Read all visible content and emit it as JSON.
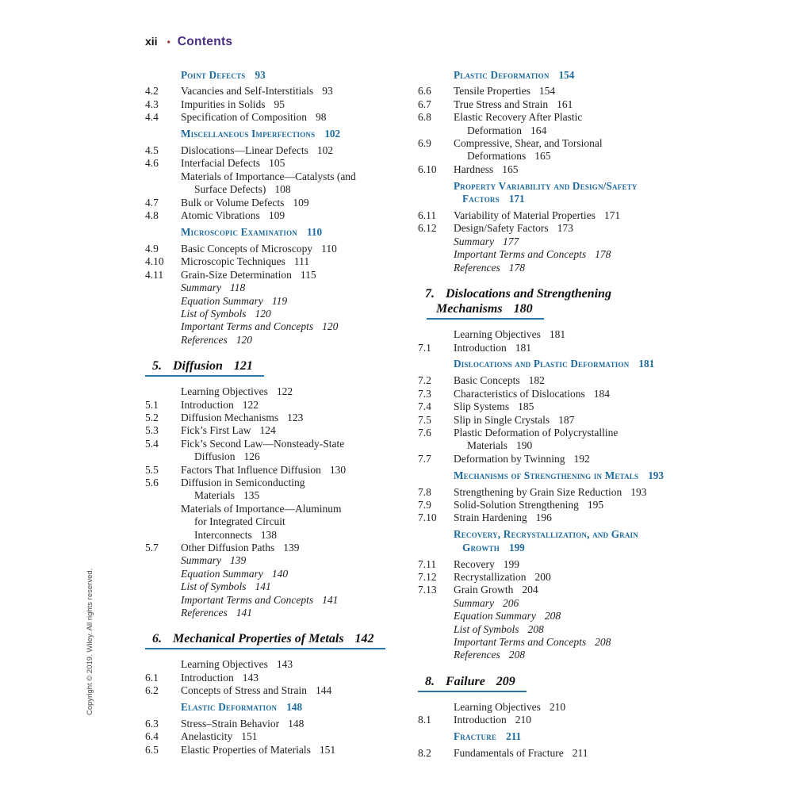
{
  "header": {
    "page_label": "xii",
    "separator": "•",
    "title": "Contents"
  },
  "copyright_sidebar": "Copyright © 2019. Wiley. All rights reserved.",
  "colors": {
    "section_heading_blue": "#1d6a9e",
    "chapter_underline_blue": "#2a76ae",
    "contents_purple": "#4b2d84",
    "bullet_red": "#9e2b25",
    "body_text": "#1f1f1f",
    "background": "#ffffff"
  },
  "columns": {
    "left": [
      {
        "type": "section",
        "lines": [
          [
            "Point Defects",
            "93"
          ]
        ]
      },
      {
        "type": "entry",
        "num": "4.2",
        "lines": [
          [
            "Vacancies and Self-Interstitials",
            "93"
          ]
        ]
      },
      {
        "type": "entry",
        "num": "4.3",
        "lines": [
          [
            "Impurities in Solids",
            "95"
          ]
        ]
      },
      {
        "type": "entry",
        "num": "4.4",
        "lines": [
          [
            "Specification of Composition",
            "98"
          ]
        ]
      },
      {
        "type": "section",
        "lines": [
          [
            "Miscellaneous Imperfections",
            "102"
          ]
        ]
      },
      {
        "type": "entry",
        "num": "4.5",
        "lines": [
          [
            "Dislocations—Linear Defects",
            "102"
          ]
        ]
      },
      {
        "type": "entry",
        "num": "4.6",
        "lines": [
          [
            "Interfacial Defects",
            "105"
          ]
        ]
      },
      {
        "type": "plain",
        "num": "",
        "lines": [
          [
            "Materials of Importance—Catalysts (and",
            ""
          ],
          [
            "Surface Defects)",
            "108"
          ]
        ]
      },
      {
        "type": "entry",
        "num": "4.7",
        "lines": [
          [
            "Bulk or Volume Defects",
            "109"
          ]
        ]
      },
      {
        "type": "entry",
        "num": "4.8",
        "lines": [
          [
            "Atomic Vibrations",
            "109"
          ]
        ]
      },
      {
        "type": "section",
        "lines": [
          [
            "Microscopic Examination",
            "110"
          ]
        ]
      },
      {
        "type": "entry",
        "num": "4.9",
        "lines": [
          [
            "Basic Concepts of Microscopy",
            "110"
          ]
        ]
      },
      {
        "type": "entry",
        "num": "4.10",
        "lines": [
          [
            "Microscopic Techniques",
            "111"
          ]
        ]
      },
      {
        "type": "entry",
        "num": "4.11",
        "lines": [
          [
            "Grain-Size Determination",
            "115"
          ]
        ]
      },
      {
        "type": "italic",
        "num": "",
        "lines": [
          [
            "Summary",
            "118"
          ]
        ]
      },
      {
        "type": "italic",
        "num": "",
        "lines": [
          [
            "Equation Summary",
            "119"
          ]
        ]
      },
      {
        "type": "italic",
        "num": "",
        "lines": [
          [
            "List of Symbols",
            "120"
          ]
        ]
      },
      {
        "type": "italic",
        "num": "",
        "lines": [
          [
            "Important Terms and Concepts",
            "120"
          ]
        ]
      },
      {
        "type": "italic",
        "num": "",
        "lines": [
          [
            "References",
            "120"
          ]
        ]
      },
      {
        "type": "chapter",
        "num": "5.",
        "lines": [
          [
            "Diffusion",
            "121"
          ]
        ]
      },
      {
        "type": "plain",
        "num": "",
        "lines": [
          [
            "Learning Objectives",
            "122"
          ]
        ]
      },
      {
        "type": "entry",
        "num": "5.1",
        "lines": [
          [
            "Introduction",
            "122"
          ]
        ]
      },
      {
        "type": "entry",
        "num": "5.2",
        "lines": [
          [
            "Diffusion Mechanisms",
            "123"
          ]
        ]
      },
      {
        "type": "entry",
        "num": "5.3",
        "lines": [
          [
            "Fick’s First Law",
            "124"
          ]
        ]
      },
      {
        "type": "entry",
        "num": "5.4",
        "lines": [
          [
            "Fick’s Second Law—Nonsteady-State",
            ""
          ],
          [
            "Diffusion",
            "126"
          ]
        ]
      },
      {
        "type": "entry",
        "num": "5.5",
        "lines": [
          [
            "Factors That Influence Diffusion",
            "130"
          ]
        ]
      },
      {
        "type": "entry",
        "num": "5.6",
        "lines": [
          [
            "Diffusion in Semiconducting",
            ""
          ],
          [
            "Materials",
            "135"
          ]
        ]
      },
      {
        "type": "plain",
        "num": "",
        "lines": [
          [
            "Materials of Importance—Aluminum",
            ""
          ],
          [
            "for Integrated Circuit",
            ""
          ],
          [
            "Interconnects",
            "138"
          ]
        ]
      },
      {
        "type": "entry",
        "num": "5.7",
        "lines": [
          [
            "Other Diffusion Paths",
            "139"
          ]
        ]
      },
      {
        "type": "italic",
        "num": "",
        "lines": [
          [
            "Summary",
            "139"
          ]
        ]
      },
      {
        "type": "italic",
        "num": "",
        "lines": [
          [
            "Equation Summary",
            "140"
          ]
        ]
      },
      {
        "type": "italic",
        "num": "",
        "lines": [
          [
            "List of Symbols",
            "141"
          ]
        ]
      },
      {
        "type": "italic",
        "num": "",
        "lines": [
          [
            "Important Terms and Concepts",
            "141"
          ]
        ]
      },
      {
        "type": "italic",
        "num": "",
        "lines": [
          [
            "References",
            "141"
          ]
        ]
      },
      {
        "type": "chapter",
        "num": "6.",
        "lines": [
          [
            "Mechanical Properties of Metals",
            "142"
          ]
        ]
      },
      {
        "type": "plain",
        "num": "",
        "lines": [
          [
            "Learning Objectives",
            "143"
          ]
        ]
      },
      {
        "type": "entry",
        "num": "6.1",
        "lines": [
          [
            "Introduction",
            "143"
          ]
        ]
      },
      {
        "type": "entry",
        "num": "6.2",
        "lines": [
          [
            "Concepts of Stress and Strain",
            "144"
          ]
        ]
      },
      {
        "type": "section",
        "lines": [
          [
            "Elastic Deformation",
            "148"
          ]
        ]
      },
      {
        "type": "entry",
        "num": "6.3",
        "lines": [
          [
            "Stress–Strain Behavior",
            "148"
          ]
        ]
      },
      {
        "type": "entry",
        "num": "6.4",
        "lines": [
          [
            "Anelasticity",
            "151"
          ]
        ]
      },
      {
        "type": "entry",
        "num": "6.5",
        "lines": [
          [
            "Elastic Properties of Materials",
            "151"
          ]
        ]
      }
    ],
    "right": [
      {
        "type": "section",
        "lines": [
          [
            "Plastic Deformation",
            "154"
          ]
        ]
      },
      {
        "type": "entry",
        "num": "6.6",
        "lines": [
          [
            "Tensile Properties",
            "154"
          ]
        ]
      },
      {
        "type": "entry",
        "num": "6.7",
        "lines": [
          [
            "True Stress and Strain",
            "161"
          ]
        ]
      },
      {
        "type": "entry",
        "num": "6.8",
        "lines": [
          [
            "Elastic Recovery After Plastic",
            ""
          ],
          [
            "Deformation",
            "164"
          ]
        ]
      },
      {
        "type": "entry",
        "num": "6.9",
        "lines": [
          [
            "Compressive, Shear, and Torsional",
            ""
          ],
          [
            "Deformations",
            "165"
          ]
        ]
      },
      {
        "type": "entry",
        "num": "6.10",
        "lines": [
          [
            "Hardness",
            "165"
          ]
        ]
      },
      {
        "type": "section",
        "lines": [
          [
            "Property Variability and Design/Safety",
            ""
          ],
          [
            "Factors",
            "171"
          ]
        ]
      },
      {
        "type": "entry",
        "num": "6.11",
        "lines": [
          [
            "Variability of Material Properties",
            "171"
          ]
        ]
      },
      {
        "type": "entry",
        "num": "6.12",
        "lines": [
          [
            "Design/Safety Factors",
            "173"
          ]
        ]
      },
      {
        "type": "italic",
        "num": "",
        "lines": [
          [
            "Summary",
            "177"
          ]
        ]
      },
      {
        "type": "italic",
        "num": "",
        "lines": [
          [
            "Important Terms and Concepts",
            "178"
          ]
        ]
      },
      {
        "type": "italic",
        "num": "",
        "lines": [
          [
            "References",
            "178"
          ]
        ]
      },
      {
        "type": "chapter",
        "num": "7.",
        "lines": [
          [
            "Dislocations and Strengthening",
            ""
          ],
          [
            "Mechanisms",
            "180"
          ]
        ]
      },
      {
        "type": "plain",
        "num": "",
        "lines": [
          [
            "Learning Objectives",
            "181"
          ]
        ]
      },
      {
        "type": "entry",
        "num": "7.1",
        "lines": [
          [
            "Introduction",
            "181"
          ]
        ]
      },
      {
        "type": "section",
        "lines": [
          [
            "Dislocations and Plastic Deformation",
            "181"
          ]
        ]
      },
      {
        "type": "entry",
        "num": "7.2",
        "lines": [
          [
            "Basic Concepts",
            "182"
          ]
        ]
      },
      {
        "type": "entry",
        "num": "7.3",
        "lines": [
          [
            "Characteristics of Dislocations",
            "184"
          ]
        ]
      },
      {
        "type": "entry",
        "num": "7.4",
        "lines": [
          [
            "Slip Systems",
            "185"
          ]
        ]
      },
      {
        "type": "entry",
        "num": "7.5",
        "lines": [
          [
            "Slip in Single Crystals",
            "187"
          ]
        ]
      },
      {
        "type": "entry",
        "num": "7.6",
        "lines": [
          [
            "Plastic Deformation of Polycrystalline",
            ""
          ],
          [
            "Materials",
            "190"
          ]
        ]
      },
      {
        "type": "entry",
        "num": "7.7",
        "lines": [
          [
            "Deformation by Twinning",
            "192"
          ]
        ]
      },
      {
        "type": "section",
        "lines": [
          [
            "Mechanisms of Strengthening in Metals",
            "193"
          ]
        ]
      },
      {
        "type": "entry",
        "num": "7.8",
        "lines": [
          [
            "Strengthening by Grain Size Reduction",
            "193"
          ]
        ]
      },
      {
        "type": "entry",
        "num": "7.9",
        "lines": [
          [
            "Solid-Solution Strengthening",
            "195"
          ]
        ]
      },
      {
        "type": "entry",
        "num": "7.10",
        "lines": [
          [
            "Strain Hardening",
            "196"
          ]
        ]
      },
      {
        "type": "section",
        "lines": [
          [
            "Recovery, Recrystallization, and Grain",
            ""
          ],
          [
            "Growth",
            "199"
          ]
        ]
      },
      {
        "type": "entry",
        "num": "7.11",
        "lines": [
          [
            "Recovery",
            "199"
          ]
        ]
      },
      {
        "type": "entry",
        "num": "7.12",
        "lines": [
          [
            "Recrystallization",
            "200"
          ]
        ]
      },
      {
        "type": "entry",
        "num": "7.13",
        "lines": [
          [
            "Grain Growth",
            "204"
          ]
        ]
      },
      {
        "type": "italic",
        "num": "",
        "lines": [
          [
            "Summary",
            "206"
          ]
        ]
      },
      {
        "type": "italic",
        "num": "",
        "lines": [
          [
            "Equation Summary",
            "208"
          ]
        ]
      },
      {
        "type": "italic",
        "num": "",
        "lines": [
          [
            "List of Symbols",
            "208"
          ]
        ]
      },
      {
        "type": "italic",
        "num": "",
        "lines": [
          [
            "Important Terms and Concepts",
            "208"
          ]
        ]
      },
      {
        "type": "italic",
        "num": "",
        "lines": [
          [
            "References",
            "208"
          ]
        ]
      },
      {
        "type": "chapter",
        "num": "8.",
        "lines": [
          [
            "Failure",
            "209"
          ]
        ]
      },
      {
        "type": "plain",
        "num": "",
        "lines": [
          [
            "Learning Objectives",
            "210"
          ]
        ]
      },
      {
        "type": "entry",
        "num": "8.1",
        "lines": [
          [
            "Introduction",
            "210"
          ]
        ]
      },
      {
        "type": "section",
        "lines": [
          [
            "Fracture",
            "211"
          ]
        ]
      },
      {
        "type": "entry",
        "num": "8.2",
        "lines": [
          [
            "Fundamentals of Fracture",
            "211"
          ]
        ]
      }
    ]
  }
}
